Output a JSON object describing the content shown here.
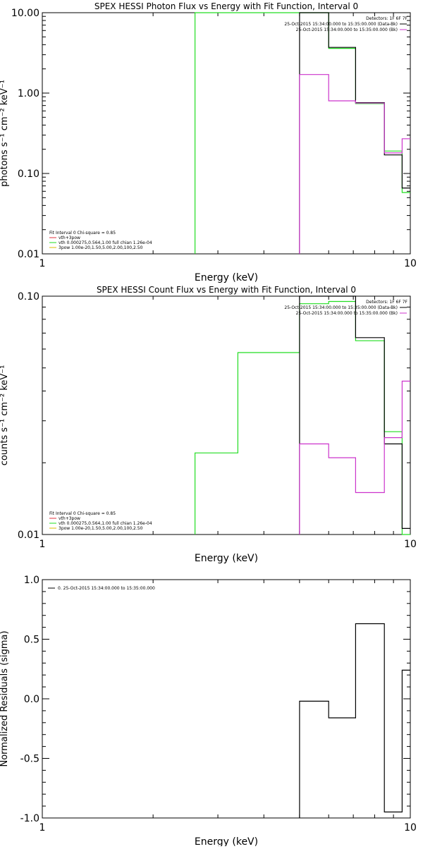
{
  "chart_data": [
    {
      "type": "line",
      "title": "SPEX HESSI Photon Flux vs Energy with Fit Function, Interval 0",
      "xlabel": "Energy (keV)",
      "ylabel": "photons s⁻¹ cm⁻² keV⁻¹",
      "xscale": "log",
      "yscale": "log",
      "xlim": [
        1,
        10
      ],
      "ylim": [
        0.01,
        10
      ],
      "xticks": [
        {
          "v": 1,
          "label": "1"
        },
        {
          "v": 10,
          "label": "10"
        }
      ],
      "yticks": [
        {
          "v": 0.01,
          "label": "0.01"
        },
        {
          "v": 0.1,
          "label": "0.10"
        },
        {
          "v": 1,
          "label": "1.00"
        },
        {
          "v": 10,
          "label": "10.00"
        }
      ],
      "legend_top": {
        "header": "Detectors: 1F 6F 7F",
        "entries": [
          {
            "text": "25-Oct-2015 15:34:00.000 to 15:35:00.000 (Data-Bk)",
            "color": "#000000"
          },
          {
            "text": "25-Oct-2015 15:34:00.000 to 15:35:00.000 (Bk)",
            "color": "#cc33cc"
          }
        ]
      },
      "legend_bottom": {
        "header": "Fit Interval 0   Chi-square = 0.85",
        "entries": [
          {
            "text": "vth+3pow",
            "color": "#e0303c"
          },
          {
            "text": "vth 0.000275,0.564,1.00  full chian 1.26e-04",
            "color": "#22dd22"
          },
          {
            "text": "3pow 1.00e-20,1.50,5.00,2.00,100,2.50",
            "color": "#ddbb00"
          }
        ]
      },
      "series": [
        {
          "color": "#22dd22",
          "steps": [
            {
              "x0": 2.6,
              "x1": 5.0,
              "y": 10
            },
            {
              "x0": 5.0,
              "x1": 6.0,
              "y": 10
            },
            {
              "x0": 6.0,
              "x1": 7.1,
              "y": 3.6
            },
            {
              "x0": 7.1,
              "x1": 8.5,
              "y": 0.74
            },
            {
              "x0": 8.5,
              "x1": 9.5,
              "y": 0.19
            },
            {
              "x0": 9.5,
              "x1": 10,
              "y": 0.058
            }
          ]
        },
        {
          "color": "#000000",
          "steps": [
            {
              "x0": 5.0,
              "x1": 6.0,
              "y": 10
            },
            {
              "x0": 6.0,
              "x1": 7.1,
              "y": 3.7
            },
            {
              "x0": 7.1,
              "x1": 8.5,
              "y": 0.76
            },
            {
              "x0": 8.5,
              "x1": 9.5,
              "y": 0.17
            },
            {
              "x0": 9.5,
              "x1": 10,
              "y": 0.066
            }
          ]
        },
        {
          "color": "#cc33cc",
          "steps": [
            {
              "x0": 5.0,
              "x1": 6.0,
              "y": 1.7
            },
            {
              "x0": 6.0,
              "x1": 7.1,
              "y": 0.8
            },
            {
              "x0": 7.1,
              "x1": 8.5,
              "y": 0.75
            },
            {
              "x0": 8.5,
              "x1": 9.5,
              "y": 0.18
            },
            {
              "x0": 9.5,
              "x1": 10,
              "y": 0.27
            }
          ]
        }
      ]
    },
    {
      "type": "line",
      "title": "SPEX HESSI Count Flux vs Energy with Fit Function, Interval 0",
      "xlabel": "Energy (keV)",
      "ylabel": "counts s⁻¹ cm⁻² keV⁻¹",
      "xscale": "log",
      "yscale": "log",
      "xlim": [
        1,
        10
      ],
      "ylim": [
        0.01,
        0.1
      ],
      "xticks": [
        {
          "v": 1,
          "label": "1"
        },
        {
          "v": 10,
          "label": "10"
        }
      ],
      "yticks": [
        {
          "v": 0.01,
          "label": "0.01"
        },
        {
          "v": 0.1,
          "label": "0.10"
        }
      ],
      "legend_top": {
        "header": "Detectors: 1F 6F 7F",
        "entries": [
          {
            "text": "25-Oct-2015 15:34:00.000 to 15:35:00.000 (Data-Bk)",
            "color": "#000000"
          },
          {
            "text": "25-Oct-2015 15:34:00.000 to 15:35:00.000 (Bk)",
            "color": "#cc33cc"
          }
        ]
      },
      "legend_bottom": {
        "header": "Fit Interval 0   Chi-square = 0.85",
        "entries": [
          {
            "text": "vth+3pow",
            "color": "#e0303c"
          },
          {
            "text": "vth 0.000275,0.564,1.00  full chian 1.26e-04",
            "color": "#22dd22"
          },
          {
            "text": "3pow 1.00e-20,1.50,5.00,2.00,100,2.50",
            "color": "#ddbb00"
          }
        ]
      },
      "series": [
        {
          "color": "#22dd22",
          "steps": [
            {
              "x0": 2.6,
              "x1": 3.4,
              "y": 0.022
            },
            {
              "x0": 3.4,
              "x1": 5.0,
              "y": 0.058
            },
            {
              "x0": 5.0,
              "x1": 6.0,
              "y": 0.093
            },
            {
              "x0": 6.0,
              "x1": 7.1,
              "y": 0.095
            },
            {
              "x0": 7.1,
              "x1": 8.5,
              "y": 0.065
            },
            {
              "x0": 8.5,
              "x1": 9.5,
              "y": 0.027
            },
            {
              "x0": 9.5,
              "x1": 10,
              "y": 0.01
            }
          ]
        },
        {
          "color": "#000000",
          "steps": [
            {
              "x0": 5.0,
              "x1": 6.0,
              "y": 0.1
            },
            {
              "x0": 6.0,
              "x1": 7.1,
              "y": 0.1
            },
            {
              "x0": 7.1,
              "x1": 8.5,
              "y": 0.067
            },
            {
              "x0": 8.5,
              "x1": 9.5,
              "y": 0.024
            },
            {
              "x0": 9.5,
              "x1": 10,
              "y": 0.0106
            }
          ]
        },
        {
          "color": "#cc33cc",
          "steps": [
            {
              "x0": 5.0,
              "x1": 6.0,
              "y": 0.024
            },
            {
              "x0": 6.0,
              "x1": 7.1,
              "y": 0.021
            },
            {
              "x0": 7.1,
              "x1": 8.5,
              "y": 0.015
            },
            {
              "x0": 8.5,
              "x1": 9.5,
              "y": 0.0255
            },
            {
              "x0": 9.5,
              "x1": 10,
              "y": 0.044
            }
          ]
        }
      ]
    },
    {
      "type": "line",
      "title": "",
      "xlabel": "Energy (keV)",
      "ylabel": "Normalized Residuals (sigma)",
      "xscale": "log",
      "yscale": "linear",
      "xlim": [
        1,
        10
      ],
      "ylim": [
        -1.0,
        1.0
      ],
      "xticks": [
        {
          "v": 1,
          "label": "1"
        },
        {
          "v": 10,
          "label": "10"
        }
      ],
      "yticks": [
        {
          "v": -1.0,
          "label": "-1.0"
        },
        {
          "v": -0.5,
          "label": "-0.5"
        },
        {
          "v": 0.0,
          "label": "0.0"
        },
        {
          "v": 0.5,
          "label": "0.5"
        },
        {
          "v": 1.0,
          "label": "1.0"
        }
      ],
      "legend_top": {
        "header": "",
        "entries": [
          {
            "text": "0. 25-Oct-2015 15:34:00.000 to 15:35:00.000",
            "color": "#000000"
          }
        ]
      },
      "series": [
        {
          "color": "#000000",
          "steps": [
            {
              "x0": 5.0,
              "x1": 6.0,
              "y": -0.02
            },
            {
              "x0": 6.0,
              "x1": 7.1,
              "y": -0.16
            },
            {
              "x0": 7.1,
              "x1": 8.5,
              "y": 0.63
            },
            {
              "x0": 8.5,
              "x1": 9.5,
              "y": -0.95
            },
            {
              "x0": 9.5,
              "x1": 10,
              "y": 0.24
            }
          ]
        }
      ]
    }
  ]
}
